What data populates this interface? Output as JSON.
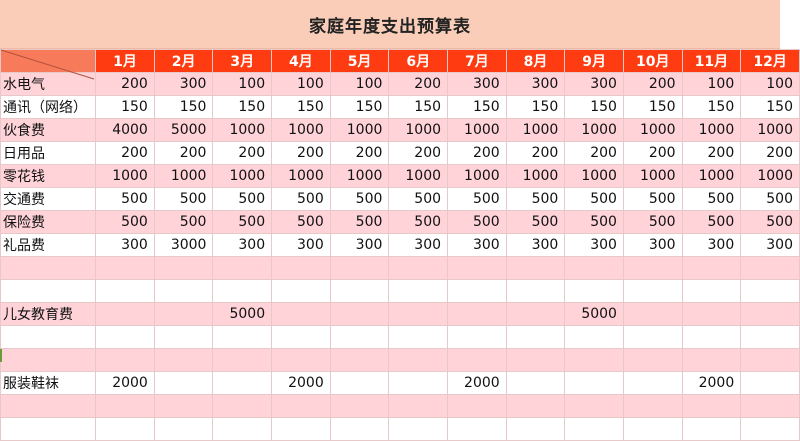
{
  "title": "家庭年度支出预算表",
  "months": [
    "1月",
    "2月",
    "3月",
    "4月",
    "5月",
    "6月",
    "7月",
    "8月",
    "9月",
    "10月",
    "11月",
    "12月"
  ],
  "rows": [
    {
      "label": "水电气",
      "values": [
        "200",
        "300",
        "100",
        "100",
        "100",
        "200",
        "300",
        "300",
        "300",
        "200",
        "100",
        "100"
      ]
    },
    {
      "label": "通讯（网络）",
      "values": [
        "150",
        "150",
        "150",
        "150",
        "150",
        "150",
        "150",
        "150",
        "150",
        "150",
        "150",
        "150"
      ]
    },
    {
      "label": "伙食费",
      "values": [
        "4000",
        "5000",
        "1000",
        "1000",
        "1000",
        "1000",
        "1000",
        "1000",
        "1000",
        "1000",
        "1000",
        "1000"
      ]
    },
    {
      "label": "日用品",
      "values": [
        "200",
        "200",
        "200",
        "200",
        "200",
        "200",
        "200",
        "200",
        "200",
        "200",
        "200",
        "200"
      ]
    },
    {
      "label": "零花钱",
      "values": [
        "1000",
        "1000",
        "1000",
        "1000",
        "1000",
        "1000",
        "1000",
        "1000",
        "1000",
        "1000",
        "1000",
        "1000"
      ]
    },
    {
      "label": "交通费",
      "values": [
        "500",
        "500",
        "500",
        "500",
        "500",
        "500",
        "500",
        "500",
        "500",
        "500",
        "500",
        "500"
      ]
    },
    {
      "label": "保险费",
      "values": [
        "500",
        "500",
        "500",
        "500",
        "500",
        "500",
        "500",
        "500",
        "500",
        "500",
        "500",
        "500"
      ]
    },
    {
      "label": "礼品费",
      "values": [
        "300",
        "3000",
        "300",
        "300",
        "300",
        "300",
        "300",
        "300",
        "300",
        "300",
        "300",
        "300"
      ]
    },
    {
      "label": "",
      "values": [
        "",
        "",
        "",
        "",
        "",
        "",
        "",
        "",
        "",
        "",
        "",
        ""
      ]
    },
    {
      "label": "",
      "values": [
        "",
        "",
        "",
        "",
        "",
        "",
        "",
        "",
        "",
        "",
        "",
        ""
      ]
    },
    {
      "label": "儿女教育费",
      "values": [
        "",
        "",
        "5000",
        "",
        "",
        "",
        "",
        "",
        "5000",
        "",
        "",
        ""
      ]
    },
    {
      "label": "",
      "values": [
        "",
        "",
        "",
        "",
        "",
        "",
        "",
        "",
        "",
        "",
        "",
        ""
      ]
    },
    {
      "label": "",
      "values": [
        "",
        "",
        "",
        "",
        "",
        "",
        "",
        "",
        "",
        "",
        "",
        ""
      ]
    },
    {
      "label": "服装鞋袜",
      "values": [
        "2000",
        "",
        "",
        "2000",
        "",
        "",
        "2000",
        "",
        "",
        "",
        "2000",
        ""
      ]
    },
    {
      "label": "",
      "values": [
        "",
        "",
        "",
        "",
        "",
        "",
        "",
        "",
        "",
        "",
        "",
        ""
      ]
    },
    {
      "label": "",
      "values": [
        "",
        "",
        "",
        "",
        "",
        "",
        "",
        "",
        "",
        "",
        "",
        ""
      ]
    }
  ],
  "colors": {
    "title_bg": "#f9cdb8",
    "header_bg": "#ff3b12",
    "pink_row": "#ffd3d8"
  }
}
